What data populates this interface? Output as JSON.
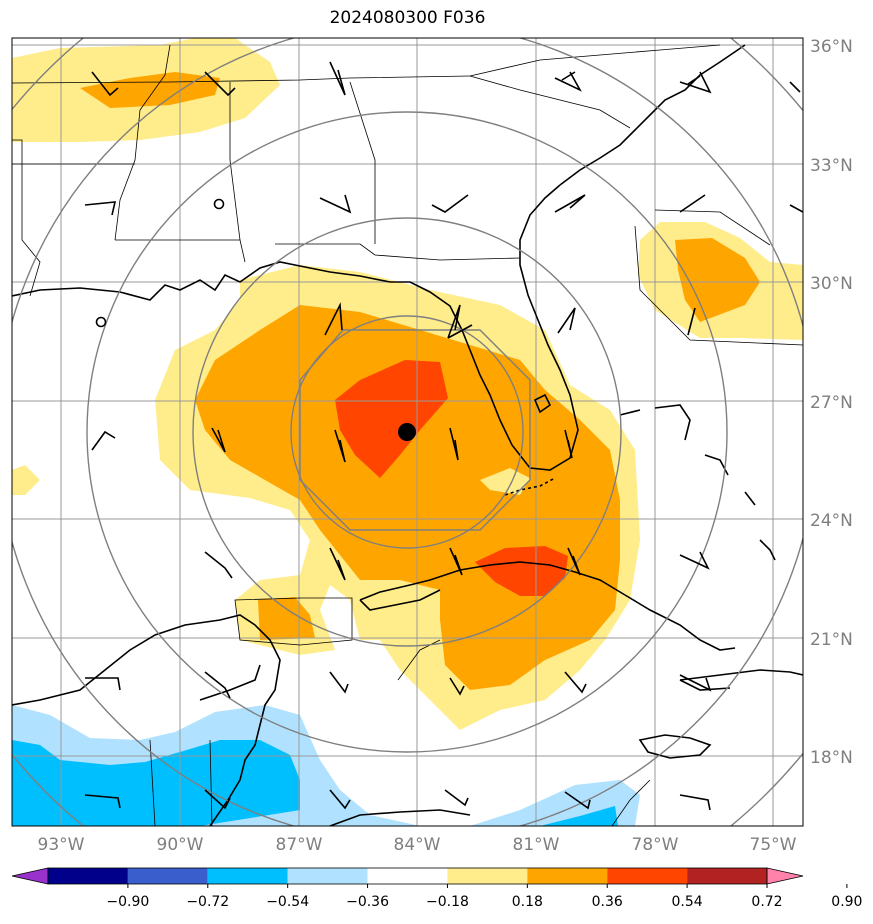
{
  "title": "2024080300 F036",
  "lat_labels": [
    "36°N",
    "33°N",
    "30°N",
    "27°N",
    "24°N",
    "21°N",
    "18°N"
  ],
  "lon_labels": [
    "93°W",
    "90°W",
    "87°W",
    "84°W",
    "81°W",
    "78°W",
    "75°W"
  ],
  "colorbar": {
    "ticks": [
      "−0.90",
      "−0.72",
      "−0.54",
      "−0.36",
      "−0.18",
      "0.18",
      "0.36",
      "0.54",
      "0.72",
      "0.90"
    ],
    "colors": [
      "#9932cc",
      "#00008b",
      "#3a5fcd",
      "#00bfff",
      "#b0e2ff",
      "#ffffff",
      "#ffec8b",
      "#ffa500",
      "#ff4500",
      "#b22222",
      "#ff82ab"
    ]
  },
  "colors": {
    "light_yellow": "#ffec8b",
    "orange": "#ffa500",
    "red_orange": "#ff4500",
    "light_blue": "#b0e2ff",
    "deep_sky_blue": "#00bfff",
    "grid": "#999999",
    "range_rings": "#7f7f7f",
    "center_marker": "#000000"
  },
  "markers": {
    "storm_center": {
      "lat": 26.2,
      "lon": -84.3,
      "icon": "filled-circle"
    }
  }
}
